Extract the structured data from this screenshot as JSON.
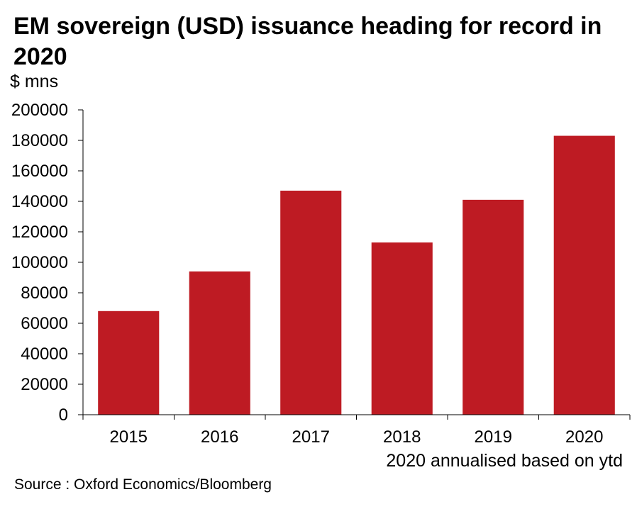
{
  "title": "EM sovereign (USD) issuance heading for record in 2020",
  "unit_label": "$ mns",
  "note": "2020 annualised based on ytd",
  "source": "Source : Oxford Economics/Bloomberg",
  "colors": {
    "bar": "#be1b23",
    "axis": "#000000",
    "background": "#ffffff"
  },
  "chart_data": {
    "type": "bar",
    "title": "EM sovereign (USD) issuance heading for record in 2020",
    "xlabel": "",
    "ylabel": "$ mns",
    "categories": [
      "2015",
      "2016",
      "2017",
      "2018",
      "2019",
      "2020"
    ],
    "values": [
      68000,
      94000,
      147000,
      113000,
      141000,
      183000
    ],
    "ylim": [
      0,
      200000
    ],
    "yticks": [
      0,
      20000,
      40000,
      60000,
      80000,
      100000,
      120000,
      140000,
      160000,
      180000,
      200000
    ],
    "grid": false,
    "legend": "none"
  }
}
